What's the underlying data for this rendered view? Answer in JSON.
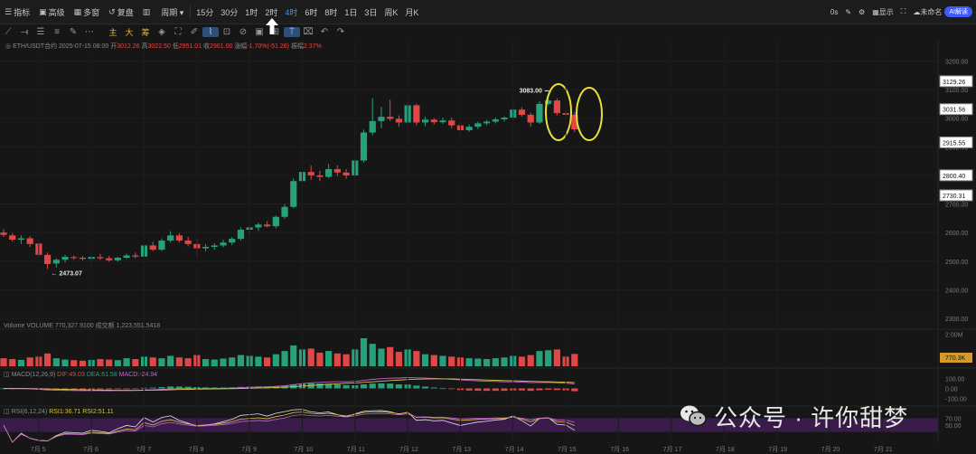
{
  "toolbar": {
    "items": [
      {
        "icon": "indicator-icon",
        "glyph": "☰",
        "label": "指标"
      },
      {
        "icon": "template-icon",
        "glyph": "▣",
        "label": "高级"
      },
      {
        "icon": "multi-chart-icon",
        "glyph": "▦",
        "label": "多窗"
      },
      {
        "icon": "replay-icon",
        "glyph": "↺",
        "label": "复盘"
      },
      {
        "icon": "chart-type-icon",
        "glyph": "▥",
        "label": ""
      },
      {
        "icon": "",
        "glyph": "",
        "label": "周期 ▾"
      }
    ],
    "intervals": [
      "15分",
      "30分",
      "1时",
      "2时",
      "4时",
      "6时",
      "8时",
      "1日",
      "3日",
      "周K",
      "月K"
    ],
    "active_interval": "4时",
    "right": {
      "speed": "0s",
      "display": "显示",
      "user": "未命名",
      "badge": "AI解读"
    }
  },
  "drawtools": {
    "icons": [
      "trendline-icon",
      "horizontal-line-icon",
      "channel-icon",
      "fib-icon",
      "brush-icon",
      "more-icon"
    ],
    "text_tools": [
      "主",
      "大",
      "筹"
    ],
    "icons2": [
      "magnet-icon",
      "lock-icon",
      "ruler-icon",
      "measure-icon",
      "text-icon",
      "delete-icon",
      "note-icon",
      "screenshot-icon",
      "pin-icon",
      "trash-icon",
      "undo-icon",
      "redo-icon"
    ]
  },
  "info": {
    "symbol": "ETH/USDT合约",
    "date": "2025-07-15 08:00",
    "open_label": "开",
    "open": "3012.26",
    "high_label": "高",
    "high": "3022.50",
    "low_label": "低",
    "low": "2951.01",
    "close_label": "收",
    "close": "2961.00",
    "change_label": "涨幅",
    "change": "-1.70%(-51.26)",
    "amp_label": "振幅",
    "amp": "2.37%"
  },
  "volume_label": {
    "name": "Volume",
    "text": "VOLUME 770,327.9100",
    "extra": "成交额",
    "extra_val": "1,223,551.5418"
  },
  "macd_label": {
    "name": "MACD(12,26,9)",
    "dif": "DIF:49.03",
    "dea": "DEA:61.58",
    "macd": "MACD:-24.94"
  },
  "rsi_label": {
    "name": "RSI(6,12,24)",
    "rsi1": "RSI1:36.71",
    "rsi2": "RSI2:51.11"
  },
  "price_axis": {
    "ticks": [
      "3200.00",
      "3100.00",
      "3000.00",
      "2900.00",
      "2800.00",
      "2700.00",
      "2600.00",
      "2500.00",
      "2400.00",
      "2300.00"
    ],
    "tags": [
      {
        "label": "3129.26",
        "value": 3129.26
      },
      {
        "label": "3031.56",
        "value": 3031.56
      },
      {
        "label": "2915.55",
        "value": 2915.55
      },
      {
        "label": "2800.40",
        "value": 2800.4
      },
      {
        "label": "2730.31",
        "value": 2730.31
      }
    ],
    "vol_ticks": [
      "2.00M"
    ],
    "vol_tag": "770.3K",
    "macd_ticks": [
      "100.00",
      "0.00",
      "-100.00"
    ],
    "rsi_ticks": [
      "70.00",
      "50.00"
    ]
  },
  "annotations": {
    "high": "3083.00",
    "low": "2473.07"
  },
  "x_axis": [
    "7月 5",
    "7月 6",
    "7月 7",
    "7月 8",
    "7月 9",
    "7月 10",
    "7月 11",
    "7月 12",
    "7月 13",
    "7月 14",
    "7月 15",
    "7月 16",
    "7月 17",
    "7月 18",
    "7月 19",
    "7月 20",
    "7月 21"
  ],
  "watermark": "公众号 · 许你甜梦",
  "colors": {
    "up": "#26a17b",
    "down": "#e04848",
    "highlight": "#e8e03a",
    "rsi_band": "#3a1c4a",
    "accent": "#3b8bff"
  },
  "chart_data": {
    "type": "candlestick",
    "candles": [
      [
        2600,
        2612,
        2585,
        2592
      ],
      [
        2590,
        2598,
        2568,
        2575
      ],
      [
        2575,
        2590,
        2560,
        2580
      ],
      [
        2580,
        2588,
        2550,
        2560
      ],
      [
        2562,
        2570,
        2515,
        2522
      ],
      [
        2522,
        2530,
        2473,
        2490
      ],
      [
        2492,
        2510,
        2478,
        2505
      ],
      [
        2505,
        2522,
        2496,
        2515
      ],
      [
        2514,
        2520,
        2505,
        2512
      ],
      [
        2512,
        2518,
        2502,
        2508
      ],
      [
        2508,
        2522,
        2498,
        2515
      ],
      [
        2514,
        2525,
        2505,
        2510
      ],
      [
        2510,
        2518,
        2498,
        2503
      ],
      [
        2503,
        2516,
        2498,
        2512
      ],
      [
        2512,
        2526,
        2508,
        2520
      ],
      [
        2520,
        2530,
        2510,
        2516
      ],
      [
        2516,
        2560,
        2512,
        2555
      ],
      [
        2555,
        2568,
        2535,
        2540
      ],
      [
        2540,
        2580,
        2536,
        2572
      ],
      [
        2572,
        2605,
        2565,
        2590
      ],
      [
        2590,
        2598,
        2565,
        2572
      ],
      [
        2572,
        2585,
        2552,
        2560
      ],
      [
        2560,
        2580,
        2520,
        2545
      ],
      [
        2545,
        2560,
        2535,
        2550
      ],
      [
        2550,
        2562,
        2540,
        2555
      ],
      [
        2555,
        2575,
        2548,
        2565
      ],
      [
        2565,
        2585,
        2556,
        2578
      ],
      [
        2578,
        2618,
        2572,
        2610
      ],
      [
        2610,
        2625,
        2595,
        2618
      ],
      [
        2618,
        2635,
        2606,
        2628
      ],
      [
        2628,
        2640,
        2618,
        2622
      ],
      [
        2622,
        2660,
        2615,
        2655
      ],
      [
        2655,
        2700,
        2648,
        2690
      ],
      [
        2690,
        2790,
        2685,
        2780
      ],
      [
        2780,
        2830,
        2772,
        2812
      ],
      [
        2812,
        2835,
        2785,
        2800
      ],
      [
        2800,
        2816,
        2780,
        2795
      ],
      [
        2795,
        2840,
        2790,
        2822
      ],
      [
        2822,
        2835,
        2798,
        2810
      ],
      [
        2810,
        2822,
        2788,
        2800
      ],
      [
        2800,
        2860,
        2795,
        2852
      ],
      [
        2852,
        2960,
        2845,
        2950
      ],
      [
        2950,
        3070,
        2940,
        2990
      ],
      [
        2990,
        3040,
        2965,
        3005
      ],
      [
        3005,
        3065,
        2990,
        2998
      ],
      [
        2998,
        3010,
        2970,
        2985
      ],
      [
        2985,
        3055,
        2978,
        3045
      ],
      [
        3045,
        3050,
        2975,
        2985
      ],
      [
        2985,
        3005,
        2972,
        2995
      ],
      [
        2995,
        3000,
        2978,
        2986
      ],
      [
        2986,
        3002,
        2980,
        2992
      ],
      [
        2992,
        3002,
        2965,
        2975
      ],
      [
        2975,
        2990,
        2950,
        2958
      ],
      [
        2958,
        2978,
        2952,
        2970
      ],
      [
        2970,
        2988,
        2962,
        2982
      ],
      [
        2982,
        2994,
        2975,
        2988
      ],
      [
        2988,
        3002,
        2982,
        2996
      ],
      [
        2996,
        3006,
        2988,
        3002
      ],
      [
        3002,
        3040,
        2996,
        3030
      ],
      [
        3030,
        3038,
        3005,
        3012
      ],
      [
        3012,
        3020,
        2970,
        2985
      ],
      [
        2985,
        3060,
        2980,
        3050
      ],
      [
        3050,
        3083,
        3045,
        3062
      ],
      [
        3062,
        3070,
        3010,
        3018
      ],
      [
        3018,
        3030,
        3000,
        3012
      ],
      [
        3012,
        3022,
        2951,
        2961
      ]
    ],
    "volumes": [
      0.5,
      0.45,
      0.4,
      0.55,
      0.6,
      0.8,
      0.5,
      0.42,
      0.38,
      0.35,
      0.4,
      0.45,
      0.42,
      0.38,
      0.5,
      0.45,
      0.6,
      0.55,
      0.5,
      0.65,
      0.55,
      0.5,
      0.7,
      0.45,
      0.42,
      0.48,
      0.55,
      0.7,
      0.65,
      0.6,
      0.55,
      0.75,
      0.95,
      1.3,
      1.05,
      1.1,
      0.85,
      0.95,
      0.8,
      0.75,
      1.05,
      1.75,
      1.4,
      1.1,
      1.2,
      0.9,
      1.05,
      0.95,
      0.75,
      0.7,
      0.65,
      0.6,
      0.55,
      0.5,
      0.48,
      0.45,
      0.5,
      0.55,
      0.65,
      0.6,
      0.7,
      0.95,
      1.0,
      1.05,
      0.6,
      0.77
    ],
    "y_range": [
      2300,
      3230
    ],
    "volume_range_M": [
      0,
      2.2
    ],
    "macd_range": [
      -160,
      160
    ],
    "rsi_range": [
      0,
      100
    ]
  }
}
